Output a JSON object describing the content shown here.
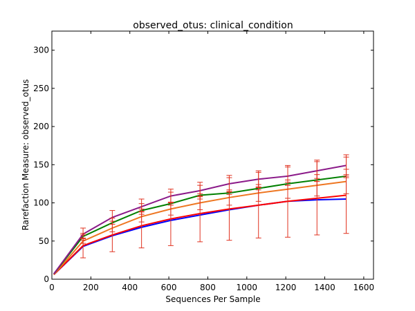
{
  "chart_data": {
    "type": "line",
    "title": "observed_otus: clinical_condition",
    "xlabel": "Sequences Per Sample",
    "ylabel": "Rarefaction Measure: observed_otus",
    "xlim": [
      0,
      1650
    ],
    "ylim": [
      0,
      325
    ],
    "xticks": [
      0,
      200,
      400,
      600,
      800,
      1000,
      1200,
      1400,
      1600
    ],
    "yticks": [
      0,
      50,
      100,
      150,
      200,
      250,
      300
    ],
    "grid": false,
    "x": [
      10,
      160,
      310,
      460,
      610,
      760,
      910,
      1060,
      1210,
      1360,
      1510
    ],
    "series": [
      {
        "color": "#0000ff",
        "values": [
          6,
          43,
          57,
          68,
          77,
          84,
          91,
          97,
          102,
          104,
          105
        ],
        "errors": [
          0,
          0,
          0,
          0,
          0,
          0,
          0,
          0,
          0,
          0,
          0
        ]
      },
      {
        "color": "#ff0000",
        "values": [
          6,
          44,
          58,
          70,
          79,
          86,
          92,
          97,
          102,
          106,
          110
        ],
        "errors": [
          0,
          16,
          22,
          29,
          35,
          37,
          41,
          43,
          47,
          48,
          50
        ]
      },
      {
        "color": "#ee7621",
        "values": [
          6,
          50,
          67,
          82,
          92,
          100,
          107,
          113,
          118,
          123,
          128
        ],
        "errors": [
          0,
          3,
          5,
          7,
          8,
          9,
          10,
          11,
          12,
          14,
          16
        ]
      },
      {
        "color": "#008000",
        "values": [
          7,
          56,
          74,
          90,
          99,
          110,
          113,
          119,
          125,
          130,
          135
        ],
        "errors": [
          0,
          2,
          2,
          2,
          2,
          2,
          2,
          2,
          2,
          2,
          2
        ]
      },
      {
        "color": "#8b1a89",
        "values": [
          7,
          59,
          81,
          95,
          109,
          116,
          125,
          131,
          135,
          142,
          149
        ],
        "errors": [
          0,
          8,
          9,
          10,
          9,
          11,
          11,
          11,
          12,
          14,
          14
        ]
      }
    ],
    "errorbar_color": "#e0301e"
  }
}
